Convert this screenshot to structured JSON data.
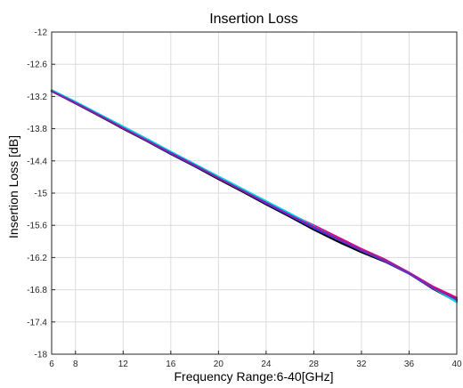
{
  "chart_data": {
    "type": "line",
    "title": "Insertion Loss",
    "xlabel": "Frequency Range:6-40[GHz]",
    "ylabel": "Insertion Loss [dB]",
    "xlim": [
      6,
      40
    ],
    "ylim": [
      -18,
      -12
    ],
    "xticks": [
      6,
      8,
      12,
      16,
      20,
      24,
      28,
      32,
      36,
      40
    ],
    "yticks": [
      -12,
      -12.6,
      -13.2,
      -13.8,
      -14.4,
      -15,
      -15.6,
      -16.2,
      -16.8,
      -17.4,
      -18
    ],
    "grid": true,
    "legend": "none",
    "series": [
      {
        "color": "#000000",
        "x": [
          6,
          8,
          10,
          12,
          14,
          16,
          18,
          20,
          22,
          24,
          26,
          28,
          30,
          32,
          34,
          36,
          38,
          40
        ],
        "y": [
          -13.1,
          -13.33,
          -13.56,
          -13.8,
          -14.03,
          -14.27,
          -14.5,
          -14.74,
          -14.97,
          -15.21,
          -15.44,
          -15.68,
          -15.9,
          -16.1,
          -16.28,
          -16.5,
          -16.78,
          -17.02
        ]
      },
      {
        "color": "#e0007a",
        "x": [
          6,
          8,
          10,
          12,
          14,
          16,
          18,
          20,
          22,
          24,
          26,
          28,
          30,
          32,
          34,
          36,
          38,
          40
        ],
        "y": [
          -13.09,
          -13.31,
          -13.54,
          -13.77,
          -14.0,
          -14.24,
          -14.47,
          -14.7,
          -14.93,
          -15.16,
          -15.39,
          -15.6,
          -15.82,
          -16.04,
          -16.24,
          -16.48,
          -16.74,
          -16.95
        ]
      },
      {
        "color": "#1a3cff",
        "x": [
          6,
          8,
          10,
          12,
          14,
          16,
          18,
          20,
          22,
          24,
          26,
          28,
          30,
          32,
          34,
          36,
          38,
          40
        ],
        "y": [
          -13.1,
          -13.32,
          -13.55,
          -13.78,
          -14.02,
          -14.26,
          -14.49,
          -14.72,
          -14.95,
          -15.19,
          -15.42,
          -15.65,
          -15.86,
          -16.07,
          -16.27,
          -16.5,
          -16.77,
          -16.99
        ]
      },
      {
        "color": "#00d6e6",
        "x": [
          6,
          8,
          10,
          12,
          14,
          16,
          18,
          20,
          22,
          24,
          26,
          28,
          30,
          32,
          34,
          36,
          38,
          40
        ],
        "y": [
          -13.08,
          -13.3,
          -13.53,
          -13.76,
          -13.99,
          -14.23,
          -14.46,
          -14.69,
          -14.92,
          -15.15,
          -15.38,
          -15.62,
          -15.85,
          -16.06,
          -16.26,
          -16.49,
          -16.76,
          -17.03
        ]
      },
      {
        "color": "#8a1fb0",
        "x": [
          6,
          8,
          10,
          12,
          14,
          16,
          18,
          20,
          22,
          24,
          26,
          28,
          30,
          32,
          34,
          36,
          38,
          40
        ],
        "y": [
          -13.1,
          -13.32,
          -13.55,
          -13.79,
          -14.02,
          -14.25,
          -14.48,
          -14.72,
          -14.95,
          -15.18,
          -15.41,
          -15.63,
          -15.85,
          -16.06,
          -16.26,
          -16.49,
          -16.76,
          -16.98
        ]
      }
    ]
  }
}
